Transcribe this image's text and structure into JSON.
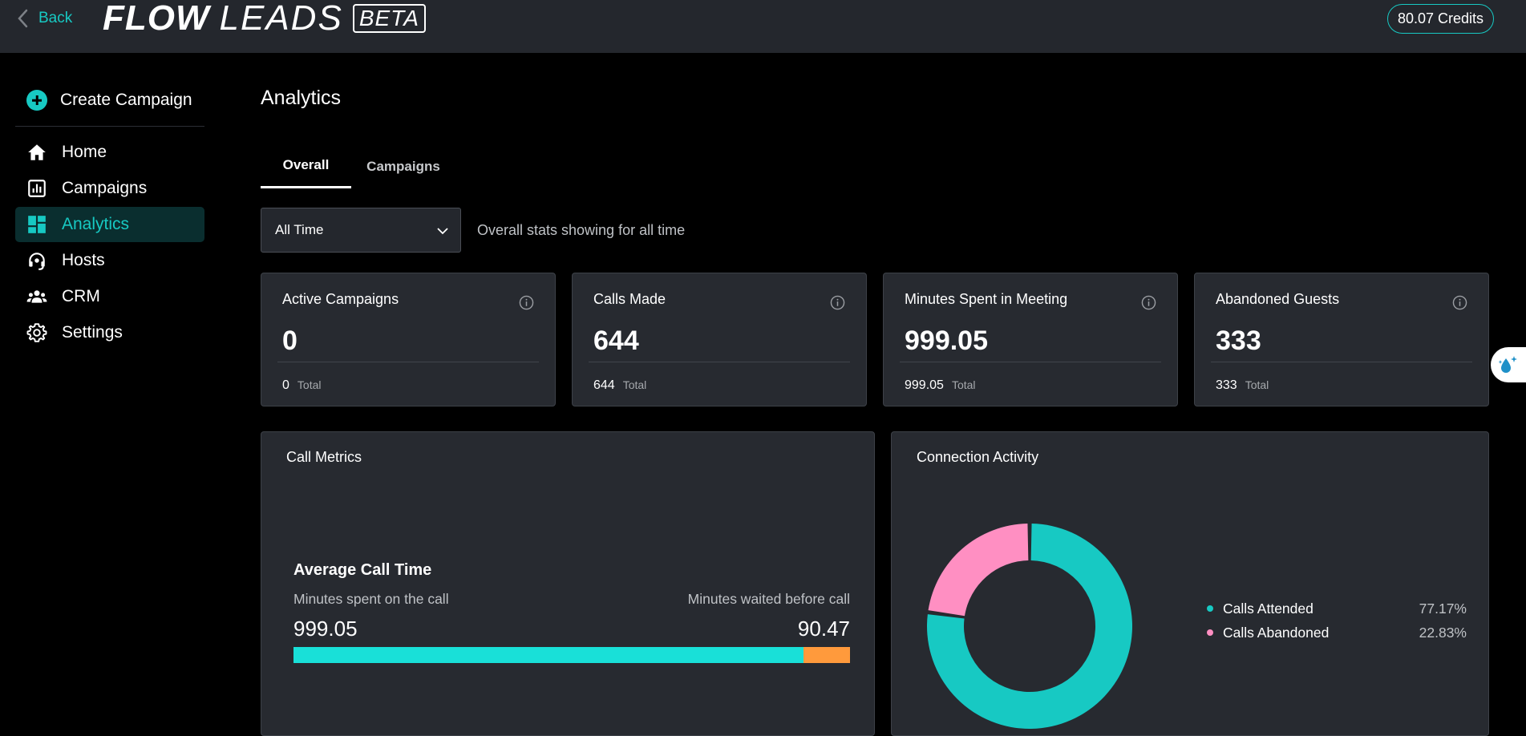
{
  "header": {
    "back_label": "Back",
    "logo_flow": "FLOW",
    "logo_leads": "LEADS",
    "logo_beta": "BETA",
    "credits": "80.07 Credits"
  },
  "sidebar": {
    "create_label": "Create Campaign",
    "items": [
      {
        "label": "Home",
        "icon": "home-icon"
      },
      {
        "label": "Campaigns",
        "icon": "chart-icon"
      },
      {
        "label": "Analytics",
        "icon": "dashboard-icon",
        "active": true
      },
      {
        "label": "Hosts",
        "icon": "headset-icon"
      },
      {
        "label": "CRM",
        "icon": "people-icon"
      },
      {
        "label": "Settings",
        "icon": "gear-icon"
      }
    ]
  },
  "main": {
    "title": "Analytics",
    "tabs": [
      {
        "label": "Overall",
        "active": true
      },
      {
        "label": "Campaigns",
        "active": false
      }
    ],
    "filter": {
      "selected": "All Time",
      "note": "Overall stats showing for all time"
    },
    "stats": [
      {
        "title": "Active Campaigns",
        "value": "0",
        "total": "0",
        "total_label": "Total"
      },
      {
        "title": "Calls Made",
        "value": "644",
        "total": "644",
        "total_label": "Total"
      },
      {
        "title": "Minutes Spent in Meeting",
        "value": "999.05",
        "total": "999.05",
        "total_label": "Total"
      },
      {
        "title": "Abandoned Guests",
        "value": "333",
        "total": "333",
        "total_label": "Total"
      }
    ],
    "call_metrics": {
      "title": "Call Metrics",
      "heading": "Average Call Time",
      "left_label": "Minutes spent on the call",
      "right_label": "Minutes waited before call",
      "left_value": "999.05",
      "right_value": "90.47",
      "on_call": 999.05,
      "waited": 90.47
    },
    "connection_activity": {
      "title": "Connection Activity",
      "legend": [
        {
          "name": "Calls Attended",
          "pct": "77.17%",
          "value": 77.17,
          "color": "#17c9c3"
        },
        {
          "name": "Calls Abandoned",
          "pct": "22.83%",
          "value": 22.83,
          "color": "#ff8fc2"
        }
      ]
    }
  },
  "colors": {
    "accent": "#17c9c3",
    "bar_call": "#19e0d8",
    "bar_wait": "#ff9a3c"
  }
}
